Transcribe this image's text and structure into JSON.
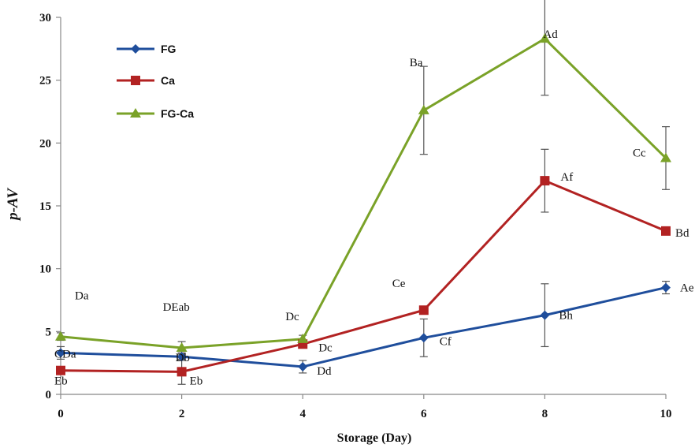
{
  "chart_data": {
    "type": "line",
    "xlabel": "Storage (Day)",
    "ylabel": "p-AV",
    "x": [
      0,
      2,
      4,
      6,
      8,
      10
    ],
    "xlim": [
      0,
      10
    ],
    "ylim": [
      0,
      30
    ],
    "xticks": [
      "0",
      "2",
      "4",
      "6",
      "8",
      "10"
    ],
    "yticks": [
      "0",
      "5",
      "10",
      "15",
      "20",
      "25",
      "30"
    ],
    "grid": false,
    "legend_position": "top-left",
    "series": [
      {
        "name": "FG",
        "color": "#1f4e9c",
        "marker": "diamond",
        "values": [
          3.3,
          3.0,
          2.2,
          4.5,
          6.3,
          8.5
        ],
        "errors": [
          0.5,
          0.3,
          0.5,
          1.5,
          2.5,
          0.5
        ],
        "labels": [
          "CDa",
          "Db",
          "Dd",
          "Cf",
          "Bh",
          "Ae"
        ]
      },
      {
        "name": "Ca",
        "color": "#b22222",
        "marker": "square",
        "values": [
          1.9,
          1.8,
          4.0,
          6.7,
          17.0,
          13.0
        ],
        "errors": [
          0.3,
          1.0,
          0.3,
          0.0,
          2.5,
          0.3
        ],
        "labels": [
          "Eb",
          "Eb",
          "Dc",
          "Ce",
          "Af",
          "Bd"
        ]
      },
      {
        "name": "FG-Ca",
        "color": "#7aa228",
        "marker": "triangle",
        "values": [
          4.6,
          3.7,
          4.4,
          22.6,
          28.3,
          18.8
        ],
        "errors": [
          0.3,
          0.5,
          0.3,
          3.5,
          4.5,
          2.5
        ],
        "labels": [
          "Da",
          "DEab",
          "Dc",
          "Ba",
          "Ad",
          "Cc"
        ]
      }
    ]
  }
}
